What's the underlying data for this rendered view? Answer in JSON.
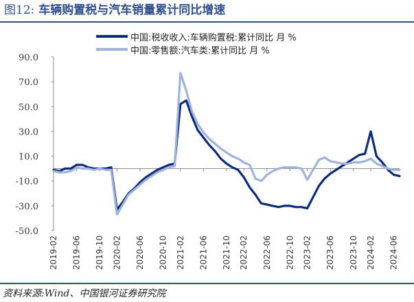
{
  "figure": {
    "title_prefix": "图12:",
    "title_text": "车辆购置税与汽车销量累计同比增速",
    "source_prefix": "资料来源:",
    "source_text": "Wind、中国银河证券研究院"
  },
  "colors": {
    "series1": "#0a2a7f",
    "series2": "#9db3df",
    "axis": "#888888",
    "rule": "#2e4f8f"
  },
  "chart_data": {
    "type": "line",
    "ylim": [
      -50,
      90
    ],
    "yticks": [
      "90.0",
      "70.0",
      "50.0",
      "30.0",
      "10.0",
      "-10.0",
      "-30.0",
      "-50.0"
    ],
    "ytick_values": [
      90,
      70,
      50,
      30,
      10,
      -10,
      -30,
      -50
    ],
    "xtick_labels": [
      "2019-02",
      "2019-06",
      "2019-10",
      "2020-02",
      "2020-06",
      "2020-10",
      "2021-02",
      "2021-06",
      "2021-10",
      "2022-02",
      "2022-06",
      "2022-10",
      "2023-02",
      "2023-06",
      "2023-10",
      "2024-02",
      "2024-06"
    ],
    "x": [
      "2019-02",
      "2019-03",
      "2019-04",
      "2019-05",
      "2019-06",
      "2019-07",
      "2019-08",
      "2019-09",
      "2019-10",
      "2019-11",
      "2019-12",
      "2020-02",
      "2020-03",
      "2020-04",
      "2020-05",
      "2020-06",
      "2020-07",
      "2020-08",
      "2020-09",
      "2020-10",
      "2020-11",
      "2020-12",
      "2021-02",
      "2021-03",
      "2021-04",
      "2021-05",
      "2021-06",
      "2021-07",
      "2021-08",
      "2021-09",
      "2021-10",
      "2021-11",
      "2021-12",
      "2022-02",
      "2022-03",
      "2022-04",
      "2022-05",
      "2022-06",
      "2022-07",
      "2022-08",
      "2022-09",
      "2022-10",
      "2022-11",
      "2022-12",
      "2023-02",
      "2023-03",
      "2023-04",
      "2023-05",
      "2023-06",
      "2023-07",
      "2023-08",
      "2023-09",
      "2023-10",
      "2023-11",
      "2023-12",
      "2024-02",
      "2024-03",
      "2024-04",
      "2024-05",
      "2024-06",
      "2024-07"
    ],
    "series": [
      {
        "name": "中国:税收收入:车辆购置税:累计同比 月 %",
        "values": [
          -1,
          -2,
          0,
          0,
          3,
          3,
          1,
          0,
          0,
          0,
          1,
          -33,
          -27,
          -20,
          -16,
          -11,
          -7,
          -4,
          -1,
          1,
          3,
          4,
          52,
          55,
          42,
          31,
          25,
          19,
          14,
          8,
          4,
          1,
          -1,
          -7,
          -15,
          -21,
          -28,
          -29,
          -30,
          -31,
          -30,
          -30,
          -31,
          -31,
          -32,
          -23,
          -14,
          -8,
          -4,
          -1,
          2,
          5,
          8,
          11,
          12,
          30,
          10,
          5,
          -1,
          -5,
          -6
        ]
      },
      {
        "name": "中国:零售额:汽车类:累计同比 月 %",
        "values": [
          -2,
          -3,
          -3,
          -2,
          1,
          0,
          0,
          -1,
          0,
          -1,
          -1,
          -37,
          -29,
          -21,
          -17,
          -13,
          -9,
          -6,
          -3,
          -1,
          1,
          2,
          77,
          63,
          46,
          36,
          29,
          24,
          20,
          16,
          13,
          10,
          8,
          5,
          3,
          -8,
          -10,
          -5,
          -2,
          0,
          1,
          1,
          1,
          0,
          -9,
          -1,
          7,
          9,
          6,
          5,
          4,
          4,
          5,
          5,
          6,
          8,
          4,
          2,
          0,
          -1,
          -1
        ]
      }
    ],
    "legend_position": "top",
    "grid": false
  }
}
